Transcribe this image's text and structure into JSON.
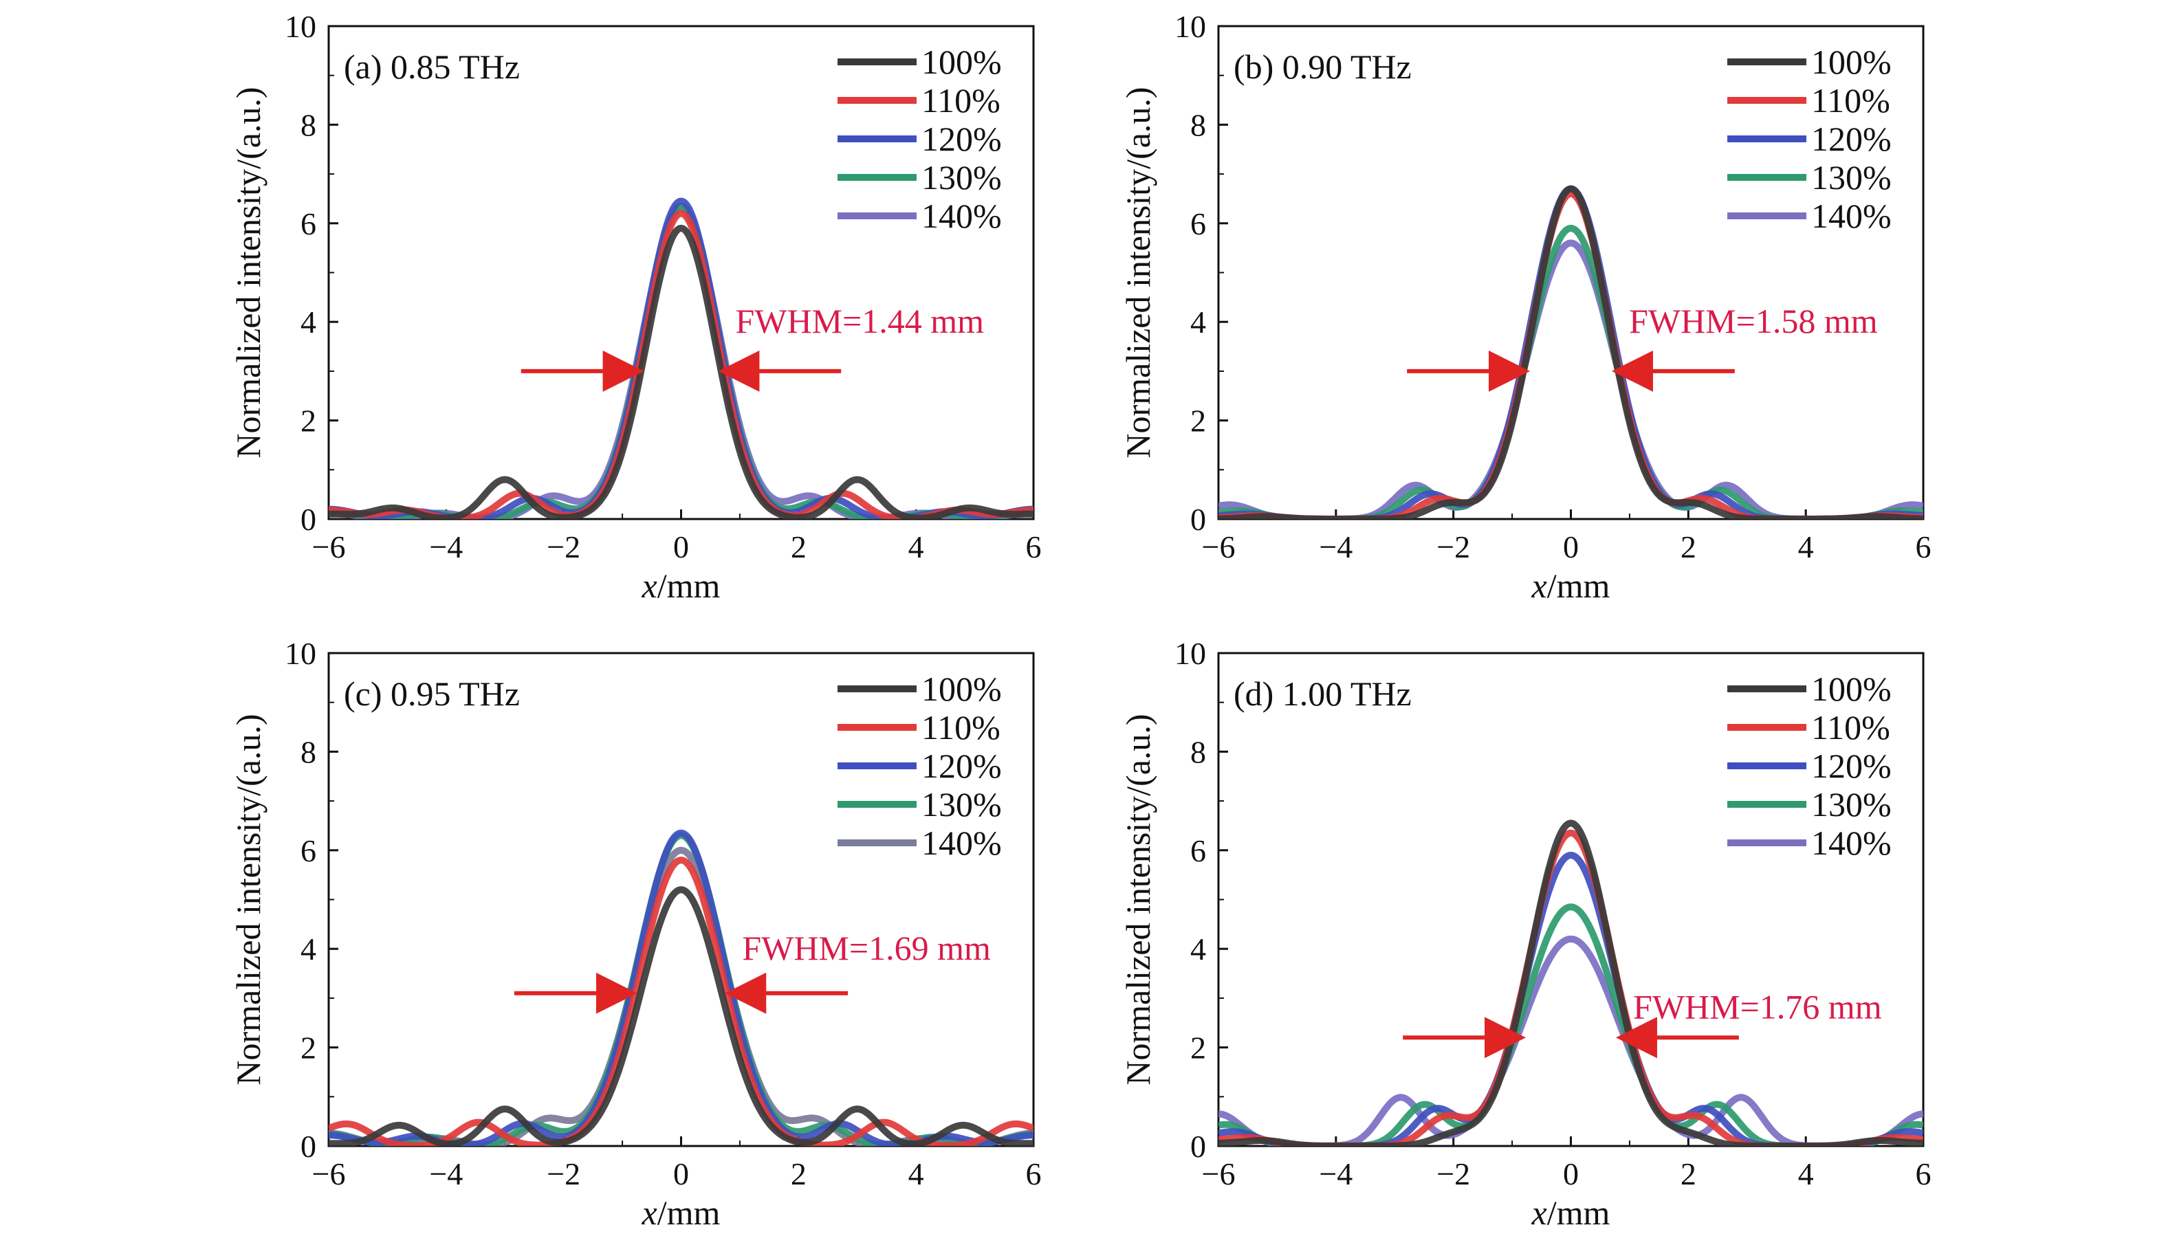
{
  "chart_data": [
    {
      "type": "line",
      "panel_label": "(a) 0.85 THz",
      "xlabel_italic": "x",
      "xlabel_unit": "/mm",
      "ylabel": "Normalized intensity/(a.u.)",
      "xlim": [
        -6,
        6
      ],
      "ylim": [
        0,
        10
      ],
      "xticks": [
        "−6",
        "−4",
        "−2",
        "0",
        "2",
        "4",
        "6"
      ],
      "yticks": [
        "0",
        "2",
        "4",
        "6",
        "8",
        "10"
      ],
      "annotation": "FWHM=1.44 mm",
      "annotation_y": 3.0,
      "grid": false,
      "legend_position": "top-right",
      "series": [
        {
          "name": "100%",
          "color": "#3a3a3a",
          "peak": 5.9,
          "fwhm": 1.38,
          "side_pos": 3.0,
          "side_h": 0.8,
          "far_pos": 4.9,
          "far_h": 0.22,
          "edge": 0.1
        },
        {
          "name": "110%",
          "color": "#e23a3a",
          "peak": 6.2,
          "fwhm": 1.42,
          "side_pos": 2.75,
          "side_h": 0.52,
          "far_pos": 4.7,
          "far_h": 0.18,
          "edge": 0.18
        },
        {
          "name": "120%",
          "color": "#3f4fbf",
          "peak": 6.45,
          "fwhm": 1.45,
          "side_pos": 2.55,
          "side_h": 0.42,
          "far_pos": 4.5,
          "far_h": 0.15,
          "edge": 0.2
        },
        {
          "name": "130%",
          "color": "#2e9a6e",
          "peak": 6.35,
          "fwhm": 1.48,
          "side_pos": 2.35,
          "side_h": 0.35,
          "far_pos": 4.3,
          "far_h": 0.12,
          "edge": 0.16
        },
        {
          "name": "140%",
          "color": "#7b6fc2",
          "peak": 6.3,
          "fwhm": 1.52,
          "side_pos": 2.2,
          "side_h": 0.45,
          "far_pos": 4.1,
          "far_h": 0.12,
          "edge": 0.12
        }
      ]
    },
    {
      "type": "line",
      "panel_label": "(b) 0.90 THz",
      "xlabel_italic": "x",
      "xlabel_unit": "/mm",
      "ylabel": "Normalized intensity/(a.u.)",
      "xlim": [
        -6,
        6
      ],
      "ylim": [
        0,
        10
      ],
      "xticks": [
        "−6",
        "−4",
        "−2",
        "0",
        "2",
        "4",
        "6"
      ],
      "yticks": [
        "0",
        "2",
        "4",
        "6",
        "8",
        "10"
      ],
      "annotation": "FWHM=1.58 mm",
      "annotation_y": 3.0,
      "grid": false,
      "legend_position": "top-right",
      "series": [
        {
          "name": "100%",
          "color": "#3a3a3a",
          "peak": 6.7,
          "fwhm": 1.5,
          "side_pos": 2.1,
          "side_h": 0.3,
          "far_pos": 5.2,
          "far_h": 0.05,
          "edge": 0.0
        },
        {
          "name": "110%",
          "color": "#e23a3a",
          "peak": 6.6,
          "fwhm": 1.54,
          "side_pos": 2.25,
          "side_h": 0.4,
          "far_pos": 5.3,
          "far_h": 0.06,
          "edge": 0.02
        },
        {
          "name": "120%",
          "color": "#3f4fbf",
          "peak": 6.7,
          "fwhm": 1.58,
          "side_pos": 2.4,
          "side_h": 0.5,
          "far_pos": 5.4,
          "far_h": 0.08,
          "edge": 0.05
        },
        {
          "name": "130%",
          "color": "#2e9a6e",
          "peak": 5.9,
          "fwhm": 1.64,
          "side_pos": 2.55,
          "side_h": 0.58,
          "far_pos": 5.5,
          "far_h": 0.1,
          "edge": 0.1
        },
        {
          "name": "140%",
          "color": "#7b6fc2",
          "peak": 5.6,
          "fwhm": 1.7,
          "side_pos": 2.65,
          "side_h": 0.68,
          "far_pos": 5.7,
          "far_h": 0.15,
          "edge": 0.16
        }
      ]
    },
    {
      "type": "line",
      "panel_label": "(c) 0.95 THz",
      "xlabel_italic": "x",
      "xlabel_unit": "/mm",
      "ylabel": "Normalized intensity/(a.u.)",
      "xlim": [
        -6,
        6
      ],
      "ylim": [
        0,
        10
      ],
      "xticks": [
        "−6",
        "−4",
        "−2",
        "0",
        "2",
        "4",
        "6"
      ],
      "yticks": [
        "0",
        "2",
        "4",
        "6",
        "8",
        "10"
      ],
      "annotation": "FWHM=1.69 mm",
      "annotation_y": 3.1,
      "grid": false,
      "legend_position": "top-right",
      "series": [
        {
          "name": "100%",
          "color": "#3a3a3a",
          "peak": 5.2,
          "fwhm": 1.6,
          "side_pos": 3.0,
          "side_h": 0.75,
          "far_pos": 4.8,
          "far_h": 0.42,
          "edge": 0.05
        },
        {
          "name": "110%",
          "color": "#e23a3a",
          "peak": 5.8,
          "fwhm": 1.64,
          "side_pos": 3.45,
          "side_h": 0.48,
          "far_pos": 5.6,
          "far_h": 0.3,
          "edge": 0.2
        },
        {
          "name": "120%",
          "color": "#3f4fbf",
          "peak": 6.35,
          "fwhm": 1.68,
          "side_pos": 2.7,
          "side_h": 0.45,
          "far_pos": 4.5,
          "far_h": 0.2,
          "edge": 0.22
        },
        {
          "name": "130%",
          "color": "#2e9a6e",
          "peak": 6.3,
          "fwhm": 1.72,
          "side_pos": 2.5,
          "side_h": 0.4,
          "far_pos": 4.3,
          "far_h": 0.18,
          "edge": 0.24
        },
        {
          "name": "140%",
          "color": "#7b7b9a",
          "peak": 6.0,
          "fwhm": 1.78,
          "side_pos": 2.3,
          "side_h": 0.5,
          "far_pos": 4.1,
          "far_h": 0.15,
          "edge": 0.26
        }
      ]
    },
    {
      "type": "line",
      "panel_label": "(d) 1.00 THz",
      "xlabel_italic": "x",
      "xlabel_unit": "/mm",
      "ylabel": "Normalized intensity/(a.u.)",
      "xlim": [
        -6,
        6
      ],
      "ylim": [
        0,
        10
      ],
      "xticks": [
        "−6",
        "−4",
        "−2",
        "0",
        "2",
        "4",
        "6"
      ],
      "yticks": [
        "0",
        "2",
        "4",
        "6",
        "8",
        "10"
      ],
      "annotation": "FWHM=1.76 mm",
      "annotation_y": 2.2,
      "grid": false,
      "legend_position": "top-right",
      "series": [
        {
          "name": "100%",
          "color": "#3a3a3a",
          "peak": 6.55,
          "fwhm": 1.6,
          "side_pos": 2.0,
          "side_h": 0.2,
          "far_pos": 5.2,
          "far_h": 0.1,
          "edge": 0.05
        },
        {
          "name": "110%",
          "color": "#e23a3a",
          "peak": 6.35,
          "fwhm": 1.66,
          "side_pos": 2.15,
          "side_h": 0.55,
          "far_pos": 5.4,
          "far_h": 0.12,
          "edge": 0.1
        },
        {
          "name": "120%",
          "color": "#3f4fbf",
          "peak": 5.9,
          "fwhm": 1.72,
          "side_pos": 2.3,
          "side_h": 0.72,
          "far_pos": 5.6,
          "far_h": 0.15,
          "edge": 0.18
        },
        {
          "name": "130%",
          "color": "#2e9a6e",
          "peak": 4.85,
          "fwhm": 1.8,
          "side_pos": 2.5,
          "side_h": 0.82,
          "far_pos": 5.8,
          "far_h": 0.2,
          "edge": 0.25
        },
        {
          "name": "140%",
          "color": "#7b6fc2",
          "peak": 4.2,
          "fwhm": 1.9,
          "side_pos": 2.9,
          "side_h": 0.98,
          "far_pos": 6.0,
          "far_h": 0.3,
          "edge": 0.35
        }
      ]
    }
  ]
}
